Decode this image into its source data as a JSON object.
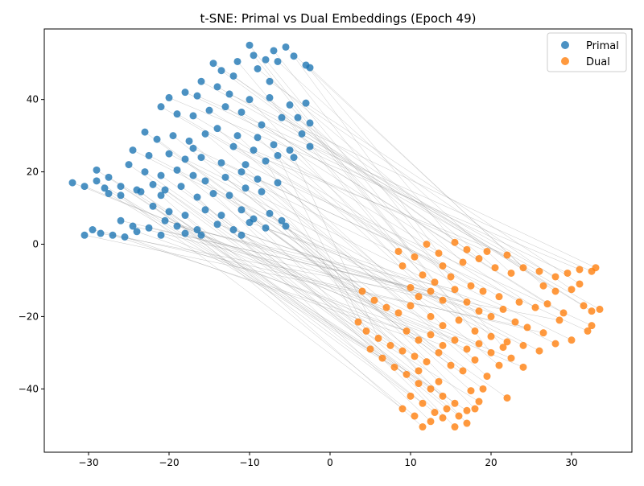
{
  "colors": {
    "primal": "#1f77b4",
    "dual": "#ff7f0e",
    "link": "#808080",
    "axis": "#000000"
  },
  "chart_data": {
    "type": "scatter",
    "title": "t-SNE: Primal vs Dual Embeddings (Epoch 49)",
    "xlabel": "",
    "ylabel": "",
    "xlim": [
      -35.5,
      37.5
    ],
    "ylim": [
      -57.5,
      59.5
    ],
    "xticks": [
      -30,
      -20,
      -10,
      0,
      10,
      20,
      30
    ],
    "yticks": [
      -40,
      -20,
      0,
      20,
      40
    ],
    "grid": false,
    "legend_position": "top-right",
    "connecting_lines": true,
    "series": [
      {
        "name": "Primal",
        "color": "#1f77b4",
        "points": [
          [
            -11.5,
            50.5
          ],
          [
            -9.5,
            52.2
          ],
          [
            -7.0,
            53.5
          ],
          [
            -4.5,
            52.0
          ],
          [
            -3.0,
            49.5
          ],
          [
            -13.5,
            48.0
          ],
          [
            -12.0,
            46.5
          ],
          [
            -9.0,
            48.5
          ],
          [
            -6.5,
            50.5
          ],
          [
            -2.5,
            48.8
          ],
          [
            -16.0,
            45.0
          ],
          [
            -14.0,
            43.5
          ],
          [
            -18.0,
            42.0
          ],
          [
            -20.0,
            40.5
          ],
          [
            -16.5,
            41.0
          ],
          [
            -12.5,
            41.5
          ],
          [
            -10.0,
            40.0
          ],
          [
            -7.5,
            40.5
          ],
          [
            -5.0,
            38.5
          ],
          [
            -4.0,
            35.0
          ],
          [
            -21.0,
            38.0
          ],
          [
            -19.0,
            36.0
          ],
          [
            -17.0,
            35.5
          ],
          [
            -15.0,
            37.0
          ],
          [
            -13.0,
            38.0
          ],
          [
            -11.0,
            36.5
          ],
          [
            -8.5,
            33.0
          ],
          [
            -6.0,
            35.0
          ],
          [
            -3.5,
            30.5
          ],
          [
            -2.5,
            27.0
          ],
          [
            -23.0,
            31.0
          ],
          [
            -21.5,
            29.0
          ],
          [
            -19.5,
            30.0
          ],
          [
            -17.5,
            28.5
          ],
          [
            -15.5,
            30.5
          ],
          [
            -14.0,
            32.0
          ],
          [
            -11.5,
            30.0
          ],
          [
            -9.0,
            29.5
          ],
          [
            -7.0,
            27.5
          ],
          [
            -5.0,
            26.0
          ],
          [
            -24.5,
            26.0
          ],
          [
            -22.5,
            24.5
          ],
          [
            -20.0,
            25.0
          ],
          [
            -18.0,
            23.5
          ],
          [
            -16.0,
            24.0
          ],
          [
            -13.5,
            22.5
          ],
          [
            -10.5,
            22.0
          ],
          [
            -8.0,
            23.0
          ],
          [
            -6.5,
            24.5
          ],
          [
            -4.5,
            24.0
          ],
          [
            -25.0,
            22.0
          ],
          [
            -23.0,
            20.0
          ],
          [
            -21.0,
            19.0
          ],
          [
            -19.0,
            20.5
          ],
          [
            -17.0,
            19.0
          ],
          [
            -15.5,
            17.5
          ],
          [
            -13.0,
            18.5
          ],
          [
            -11.0,
            20.0
          ],
          [
            -9.0,
            18.0
          ],
          [
            -6.5,
            17.0
          ],
          [
            -32.0,
            17.0
          ],
          [
            -30.5,
            16.0
          ],
          [
            -29.0,
            17.5
          ],
          [
            -28.0,
            15.5
          ],
          [
            -27.5,
            14.0
          ],
          [
            -26.0,
            16.0
          ],
          [
            -24.0,
            15.0
          ],
          [
            -22.0,
            16.5
          ],
          [
            -20.5,
            15.0
          ],
          [
            -18.5,
            16.0
          ],
          [
            -29.0,
            20.5
          ],
          [
            -27.5,
            18.5
          ],
          [
            -26.0,
            13.5
          ],
          [
            -23.5,
            14.5
          ],
          [
            -21.0,
            13.5
          ],
          [
            -16.5,
            13.0
          ],
          [
            -14.5,
            14.0
          ],
          [
            -12.5,
            13.5
          ],
          [
            -10.5,
            15.5
          ],
          [
            -8.5,
            14.5
          ],
          [
            -22.0,
            10.5
          ],
          [
            -20.0,
            9.0
          ],
          [
            -18.0,
            8.0
          ],
          [
            -15.5,
            9.5
          ],
          [
            -13.5,
            8.0
          ],
          [
            -11.0,
            9.5
          ],
          [
            -9.5,
            7.0
          ],
          [
            -7.5,
            8.5
          ],
          [
            -6.0,
            6.5
          ],
          [
            -5.5,
            5.0
          ],
          [
            -26.0,
            6.5
          ],
          [
            -24.5,
            5.0
          ],
          [
            -22.5,
            4.5
          ],
          [
            -20.5,
            6.5
          ],
          [
            -19.0,
            5.0
          ],
          [
            -16.5,
            4.0
          ],
          [
            -14.0,
            5.5
          ],
          [
            -12.0,
            4.0
          ],
          [
            -10.0,
            6.0
          ],
          [
            -8.0,
            4.5
          ],
          [
            -30.5,
            2.5
          ],
          [
            -29.5,
            4.0
          ],
          [
            -28.5,
            3.0
          ],
          [
            -27.0,
            2.5
          ],
          [
            -25.5,
            2.0
          ],
          [
            -24.0,
            3.5
          ],
          [
            -21.0,
            2.5
          ],
          [
            -18.0,
            3.0
          ],
          [
            -16.0,
            2.5
          ],
          [
            -11.0,
            2.5
          ],
          [
            -10.0,
            55.0
          ],
          [
            -8.0,
            51.0
          ],
          [
            -5.5,
            54.5
          ],
          [
            -14.5,
            50.0
          ],
          [
            -7.5,
            45.0
          ],
          [
            -3.0,
            39.0
          ],
          [
            -12.0,
            27.0
          ],
          [
            -9.5,
            26.0
          ],
          [
            -2.5,
            33.5
          ],
          [
            -17.0,
            26.5
          ]
        ]
      },
      {
        "name": "Dual",
        "color": "#ff7f0e",
        "points": [
          [
            8.5,
            -2.0
          ],
          [
            10.5,
            -3.5
          ],
          [
            12.0,
            0.0
          ],
          [
            13.5,
            -2.5
          ],
          [
            15.5,
            0.5
          ],
          [
            17.0,
            -1.5
          ],
          [
            18.5,
            -4.0
          ],
          [
            20.5,
            -6.5
          ],
          [
            22.5,
            -8.0
          ],
          [
            24.0,
            -6.5
          ],
          [
            26.0,
            -7.5
          ],
          [
            28.0,
            -9.0
          ],
          [
            29.5,
            -8.0
          ],
          [
            31.0,
            -7.0
          ],
          [
            32.5,
            -7.5
          ],
          [
            33.0,
            -6.5
          ],
          [
            9.0,
            -6.0
          ],
          [
            11.5,
            -8.5
          ],
          [
            13.0,
            -10.5
          ],
          [
            15.0,
            -9.0
          ],
          [
            17.5,
            -11.5
          ],
          [
            19.0,
            -13.0
          ],
          [
            21.0,
            -14.5
          ],
          [
            23.5,
            -16.0
          ],
          [
            25.5,
            -17.5
          ],
          [
            27.0,
            -16.5
          ],
          [
            29.0,
            -19.0
          ],
          [
            31.5,
            -17.0
          ],
          [
            32.5,
            -18.5
          ],
          [
            33.5,
            -18.0
          ],
          [
            4.0,
            -13.0
          ],
          [
            5.5,
            -15.5
          ],
          [
            7.0,
            -17.5
          ],
          [
            8.5,
            -19.0
          ],
          [
            10.0,
            -17.0
          ],
          [
            12.5,
            -20.0
          ],
          [
            14.0,
            -22.5
          ],
          [
            16.0,
            -21.0
          ],
          [
            18.0,
            -24.0
          ],
          [
            20.0,
            -25.5
          ],
          [
            22.0,
            -27.0
          ],
          [
            24.0,
            -28.0
          ],
          [
            26.0,
            -29.5
          ],
          [
            28.0,
            -27.5
          ],
          [
            30.0,
            -26.5
          ],
          [
            32.0,
            -24.0
          ],
          [
            32.5,
            -22.5
          ],
          [
            3.5,
            -21.5
          ],
          [
            4.5,
            -24.0
          ],
          [
            6.0,
            -26.0
          ],
          [
            7.5,
            -28.0
          ],
          [
            9.0,
            -29.5
          ],
          [
            10.5,
            -31.0
          ],
          [
            12.0,
            -32.5
          ],
          [
            13.5,
            -30.0
          ],
          [
            15.0,
            -33.5
          ],
          [
            16.5,
            -35.0
          ],
          [
            18.0,
            -32.0
          ],
          [
            19.5,
            -36.5
          ],
          [
            21.0,
            -33.5
          ],
          [
            22.5,
            -31.5
          ],
          [
            24.0,
            -34.0
          ],
          [
            5.0,
            -29.0
          ],
          [
            6.5,
            -31.5
          ],
          [
            8.0,
            -34.0
          ],
          [
            9.5,
            -36.0
          ],
          [
            11.0,
            -38.5
          ],
          [
            12.5,
            -40.0
          ],
          [
            14.0,
            -42.0
          ],
          [
            15.5,
            -44.0
          ],
          [
            17.0,
            -46.0
          ],
          [
            18.5,
            -43.5
          ],
          [
            9.0,
            -45.5
          ],
          [
            10.5,
            -47.5
          ],
          [
            11.5,
            -50.5
          ],
          [
            12.5,
            -49.0
          ],
          [
            14.0,
            -48.0
          ],
          [
            15.5,
            -50.5
          ],
          [
            17.0,
            -49.5
          ],
          [
            18.0,
            -45.5
          ],
          [
            10.0,
            -42.0
          ],
          [
            11.5,
            -44.0
          ],
          [
            13.0,
            -46.5
          ],
          [
            14.5,
            -45.5
          ],
          [
            16.0,
            -47.5
          ],
          [
            19.0,
            -40.0
          ],
          [
            22.0,
            -42.5
          ],
          [
            17.5,
            -40.5
          ],
          [
            13.5,
            -38.0
          ],
          [
            11.0,
            -35.0
          ],
          [
            10.0,
            -12.0
          ],
          [
            11.0,
            -14.5
          ],
          [
            12.5,
            -13.0
          ],
          [
            14.0,
            -15.5
          ],
          [
            15.5,
            -12.5
          ],
          [
            17.0,
            -16.0
          ],
          [
            18.5,
            -18.5
          ],
          [
            20.0,
            -20.0
          ],
          [
            21.5,
            -18.0
          ],
          [
            23.0,
            -21.5
          ],
          [
            24.5,
            -23.0
          ],
          [
            26.5,
            -24.5
          ],
          [
            28.5,
            -21.0
          ],
          [
            9.5,
            -24.0
          ],
          [
            11.0,
            -26.5
          ],
          [
            12.5,
            -25.0
          ],
          [
            14.0,
            -28.0
          ],
          [
            15.5,
            -26.5
          ],
          [
            17.0,
            -29.0
          ],
          [
            18.5,
            -27.5
          ],
          [
            20.0,
            -30.0
          ],
          [
            21.5,
            -28.5
          ],
          [
            26.5,
            -11.5
          ],
          [
            28.0,
            -13.0
          ],
          [
            30.0,
            -12.5
          ],
          [
            31.0,
            -11.0
          ],
          [
            22.0,
            -3.0
          ],
          [
            19.5,
            -2.0
          ],
          [
            16.5,
            -5.0
          ],
          [
            14.0,
            -6.0
          ]
        ]
      }
    ]
  }
}
